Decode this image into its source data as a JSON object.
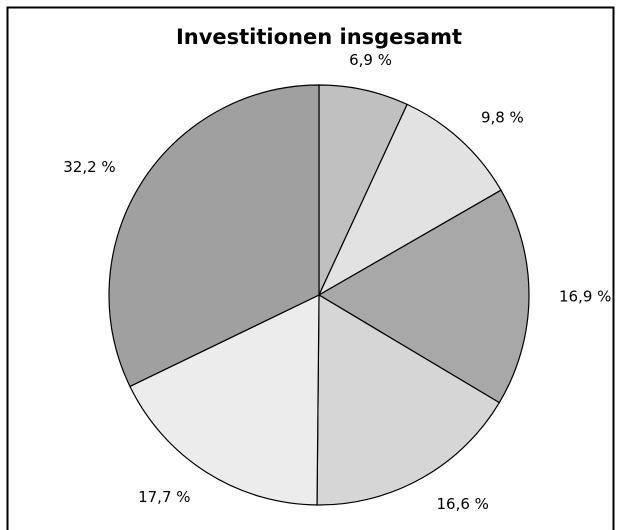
{
  "chart_data": {
    "type": "pie",
    "title": "Investitionen insgesamt",
    "values": [
      6.9,
      9.8,
      16.9,
      16.6,
      17.7,
      32.2
    ],
    "value_labels": [
      "6,9 %",
      "9,8 %",
      "16,9 %",
      "16,6 %",
      "17,7 %",
      "32,2 %"
    ],
    "colors": [
      "#c0c0c0",
      "#e2e2e2",
      "#a8a8a8",
      "#d6d6d6",
      "#ececec",
      "#a0a0a0"
    ]
  }
}
